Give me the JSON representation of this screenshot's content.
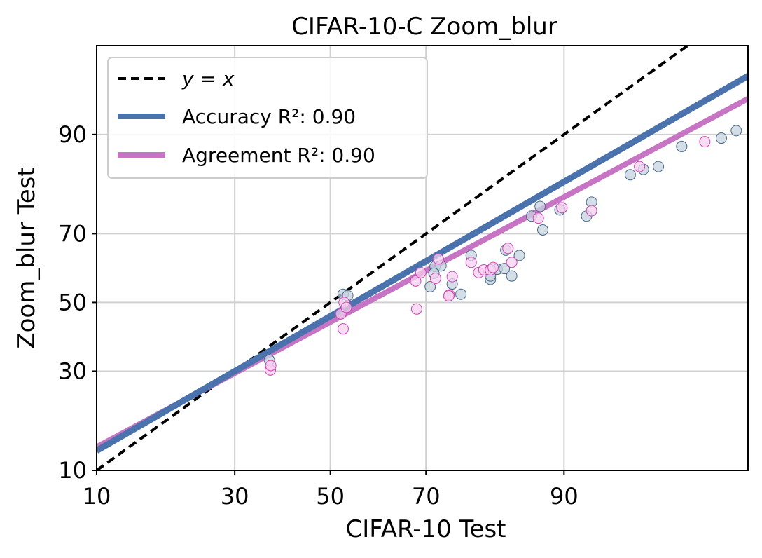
{
  "chart_data": {
    "type": "scatter",
    "title": "CIFAR-10-C Zoom_blur",
    "xlabel": "CIFAR-10 Test",
    "ylabel": "Zoom_blur Test",
    "scale": "probit",
    "xlim": [
      10,
      98.9
    ],
    "ylim": [
      10,
      97.5
    ],
    "xticks": [
      10,
      30,
      50,
      70,
      90
    ],
    "yticks": [
      10,
      30,
      50,
      70,
      90
    ],
    "tick_labels_x": [
      "10",
      "30",
      "50",
      "70",
      "90"
    ],
    "tick_labels_y": [
      "10",
      "30",
      "50",
      "70",
      "90"
    ],
    "grid": true,
    "legend_position": "top-left",
    "legend": [
      {
        "name": "y = x",
        "label_pre": "y = x",
        "label_val": "",
        "style": "dashed",
        "color": "#000000"
      },
      {
        "name": "Accuracy",
        "label_pre": "Accuracy R²: ",
        "label_val": "0.90",
        "color": "#4a72ad"
      },
      {
        "name": "Agreement",
        "label_pre": "Agreement R²: ",
        "label_val": "0.90",
        "color": "#c774c4"
      }
    ],
    "series": [
      {
        "name": "Accuracy",
        "marker_fill": "#c5d3df",
        "marker_edge": "#4a6a8a",
        "fit": [
          [
            10,
            12.9
          ],
          [
            98.9,
            95.8
          ]
        ],
        "points": [
          [
            36.9,
            33.0
          ],
          [
            52.8,
            52.5
          ],
          [
            53.8,
            52.1
          ],
          [
            71.7,
            60.8
          ],
          [
            71.5,
            58.8
          ],
          [
            72.8,
            61.0
          ],
          [
            70.8,
            54.8
          ],
          [
            74.8,
            55.6
          ],
          [
            76.3,
            52.5
          ],
          [
            78.0,
            64.0
          ],
          [
            81.0,
            57.0
          ],
          [
            81.0,
            58.0
          ],
          [
            82.0,
            60.0
          ],
          [
            83.0,
            60.2
          ],
          [
            83.2,
            65.5
          ],
          [
            84.0,
            58.0
          ],
          [
            85.0,
            64.0
          ],
          [
            86.5,
            74.5
          ],
          [
            87.5,
            76.8
          ],
          [
            87.8,
            71.0
          ],
          [
            89.6,
            76.0
          ],
          [
            92.0,
            74.5
          ],
          [
            92.4,
            77.8
          ],
          [
            95.0,
            83.5
          ],
          [
            95.7,
            84.5
          ],
          [
            96.4,
            85.0
          ],
          [
            97.3,
            88.3
          ],
          [
            98.4,
            89.5
          ],
          [
            98.7,
            90.5
          ]
        ]
      },
      {
        "name": "Agreement",
        "marker_fill": "#f5d0ee",
        "marker_edge": "#d640b8",
        "fit": [
          [
            10,
            13.5
          ],
          [
            98.9,
            94.0
          ]
        ],
        "points": [
          [
            37.1,
            30.3
          ],
          [
            37.2,
            31.5
          ],
          [
            52.3,
            46.5
          ],
          [
            53.0,
            50.0
          ],
          [
            53.5,
            48.5
          ],
          [
            52.8,
            42.0
          ],
          [
            68.0,
            56.5
          ],
          [
            69.0,
            59.0
          ],
          [
            68.2,
            48.0
          ],
          [
            71.8,
            57.3
          ],
          [
            72.3,
            63.0
          ],
          [
            74.3,
            52.3
          ],
          [
            74.2,
            52.0
          ],
          [
            74.8,
            57.8
          ],
          [
            78.0,
            62.0
          ],
          [
            79.2,
            59.0
          ],
          [
            80.0,
            59.8
          ],
          [
            81.0,
            59.8
          ],
          [
            81.4,
            60.5
          ],
          [
            83.5,
            66.0
          ],
          [
            84.0,
            62.0
          ],
          [
            87.3,
            74.0
          ],
          [
            89.8,
            76.5
          ],
          [
            92.4,
            75.8
          ],
          [
            95.5,
            85.0
          ],
          [
            98.0,
            89.0
          ]
        ]
      }
    ]
  }
}
